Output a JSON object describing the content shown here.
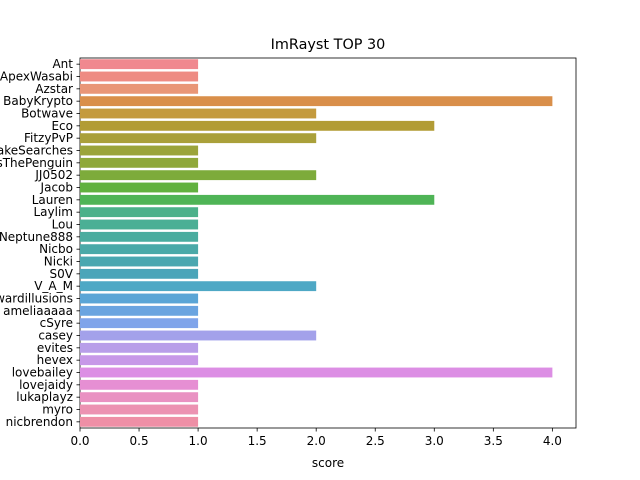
{
  "chart_data": {
    "type": "bar",
    "orientation": "horizontal",
    "title": "ImRayst TOP 30",
    "xlabel": "score",
    "ylabel": "",
    "xlim": [
      0,
      4.2
    ],
    "xticks": [
      "0.0",
      "0.5",
      "1.0",
      "1.5",
      "2.0",
      "2.5",
      "3.0",
      "3.5",
      "4.0"
    ],
    "xtick_values": [
      0,
      0.5,
      1,
      1.5,
      2,
      2.5,
      3,
      3.5,
      4
    ],
    "grid": false,
    "categories": [
      "Ant",
      "ApexWasabi",
      "Azstar",
      "BabyKrypto",
      "Botwave",
      "Eco",
      "FitzyPvP",
      "JakeSearches",
      "JamesThePenguin",
      "JJ0502",
      "Jacob",
      "Lauren",
      "Laylim",
      "Lou",
      "Neptune888",
      "Nicbo",
      "Nicki",
      "S0V",
      "V_A_M",
      "awkwardillusions",
      "ameliaaaaa",
      "cSyre",
      "casey",
      "evites",
      "hevex",
      "lovebailey",
      "lovejaidy",
      "lukaplayz",
      "myro",
      "nicbrendon"
    ],
    "values": [
      1,
      1,
      1,
      4,
      2,
      3,
      2,
      1,
      1,
      2,
      1,
      3,
      1,
      1,
      1,
      1,
      1,
      1,
      2,
      1,
      1,
      1,
      2,
      1,
      1,
      4,
      1,
      1,
      1,
      1
    ],
    "colors": [
      "#f0888f",
      "#ee8b83",
      "#e99677",
      "#d98f4a",
      "#c49a3d",
      "#b29c35",
      "#aaa03a",
      "#9ba43a",
      "#8fa83a",
      "#7dab3b",
      "#61b13f",
      "#4fb456",
      "#4bb18a",
      "#4baf95",
      "#4aac9f",
      "#4aa9a8",
      "#4aa7b0",
      "#4ba5b9",
      "#4ea8c5",
      "#5aa5d6",
      "#6aa4e0",
      "#7fa4ea",
      "#a3a1ea",
      "#b89ee9",
      "#c798e8",
      "#dc8ee4",
      "#e68fd3",
      "#e992c2",
      "#ec92b2",
      "#ee8fa6"
    ]
  }
}
